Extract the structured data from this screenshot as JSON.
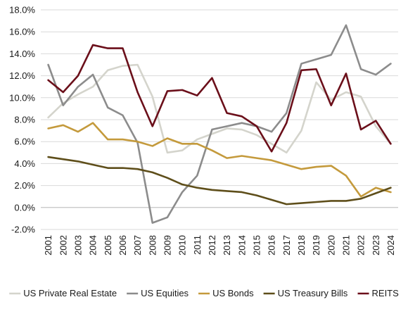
{
  "chart_data": {
    "type": "line",
    "title": "",
    "xlabel": "",
    "ylabel": "",
    "x": [
      "2001",
      "2002",
      "2003",
      "2004",
      "2005",
      "2006",
      "2007",
      "2008",
      "2009",
      "2010",
      "2011",
      "2012",
      "2013",
      "2014",
      "2015",
      "2016",
      "2017",
      "2018",
      "2019",
      "2020",
      "2021",
      "2022",
      "2023",
      "2024"
    ],
    "ylim": [
      -2.0,
      18.0
    ],
    "yticks": [
      -2.0,
      0.0,
      2.0,
      4.0,
      6.0,
      8.0,
      10.0,
      12.0,
      14.0,
      16.0,
      18.0
    ],
    "ytick_labels": [
      "-2.0%",
      "0.0%",
      "2.0%",
      "4.0%",
      "6.0%",
      "8.0%",
      "10.0%",
      "12.0%",
      "14.0%",
      "16.0%",
      "18.0%"
    ],
    "grid": true,
    "legend_position": "bottom",
    "series": [
      {
        "name": "US Private Real Estate",
        "color": "#d4d4cc",
        "values": [
          8.2,
          9.5,
          10.3,
          11.0,
          12.5,
          12.9,
          13.0,
          10.1,
          5.0,
          5.2,
          6.2,
          6.7,
          7.2,
          7.1,
          6.6,
          5.8,
          5.0,
          7.0,
          11.4,
          9.8,
          10.5,
          10.1,
          7.4,
          5.8
        ]
      },
      {
        "name": "US Equities",
        "color": "#8c8c8c",
        "values": [
          13.0,
          9.3,
          11.0,
          12.1,
          9.1,
          8.4,
          5.9,
          -1.4,
          -0.9,
          1.4,
          2.9,
          7.1,
          7.4,
          7.7,
          7.4,
          6.9,
          8.6,
          13.1,
          13.5,
          13.9,
          16.6,
          12.6,
          12.1,
          13.1
        ]
      },
      {
        "name": "US Bonds",
        "color": "#c49a3c",
        "values": [
          7.2,
          7.5,
          6.9,
          7.7,
          6.2,
          6.2,
          6.0,
          5.6,
          6.3,
          5.8,
          5.8,
          5.2,
          4.5,
          4.7,
          4.5,
          4.3,
          3.9,
          3.5,
          3.7,
          3.8,
          2.9,
          1.0,
          1.8,
          1.4
        ]
      },
      {
        "name": "US Treasury Bills",
        "color": "#5e4e1a",
        "values": [
          4.6,
          4.4,
          4.2,
          3.9,
          3.6,
          3.6,
          3.5,
          3.2,
          2.7,
          2.1,
          1.8,
          1.6,
          1.5,
          1.4,
          1.1,
          0.7,
          0.3,
          0.4,
          0.5,
          0.6,
          0.6,
          0.8,
          1.3,
          1.8
        ]
      },
      {
        "name": "REITS",
        "color": "#6b0f1a",
        "values": [
          11.6,
          10.5,
          12.0,
          14.8,
          14.5,
          14.5,
          10.5,
          7.4,
          10.6,
          10.7,
          10.2,
          11.8,
          8.6,
          8.3,
          7.4,
          5.1,
          7.7,
          12.5,
          12.6,
          9.3,
          12.2,
          7.1,
          7.9,
          5.8
        ]
      }
    ]
  }
}
